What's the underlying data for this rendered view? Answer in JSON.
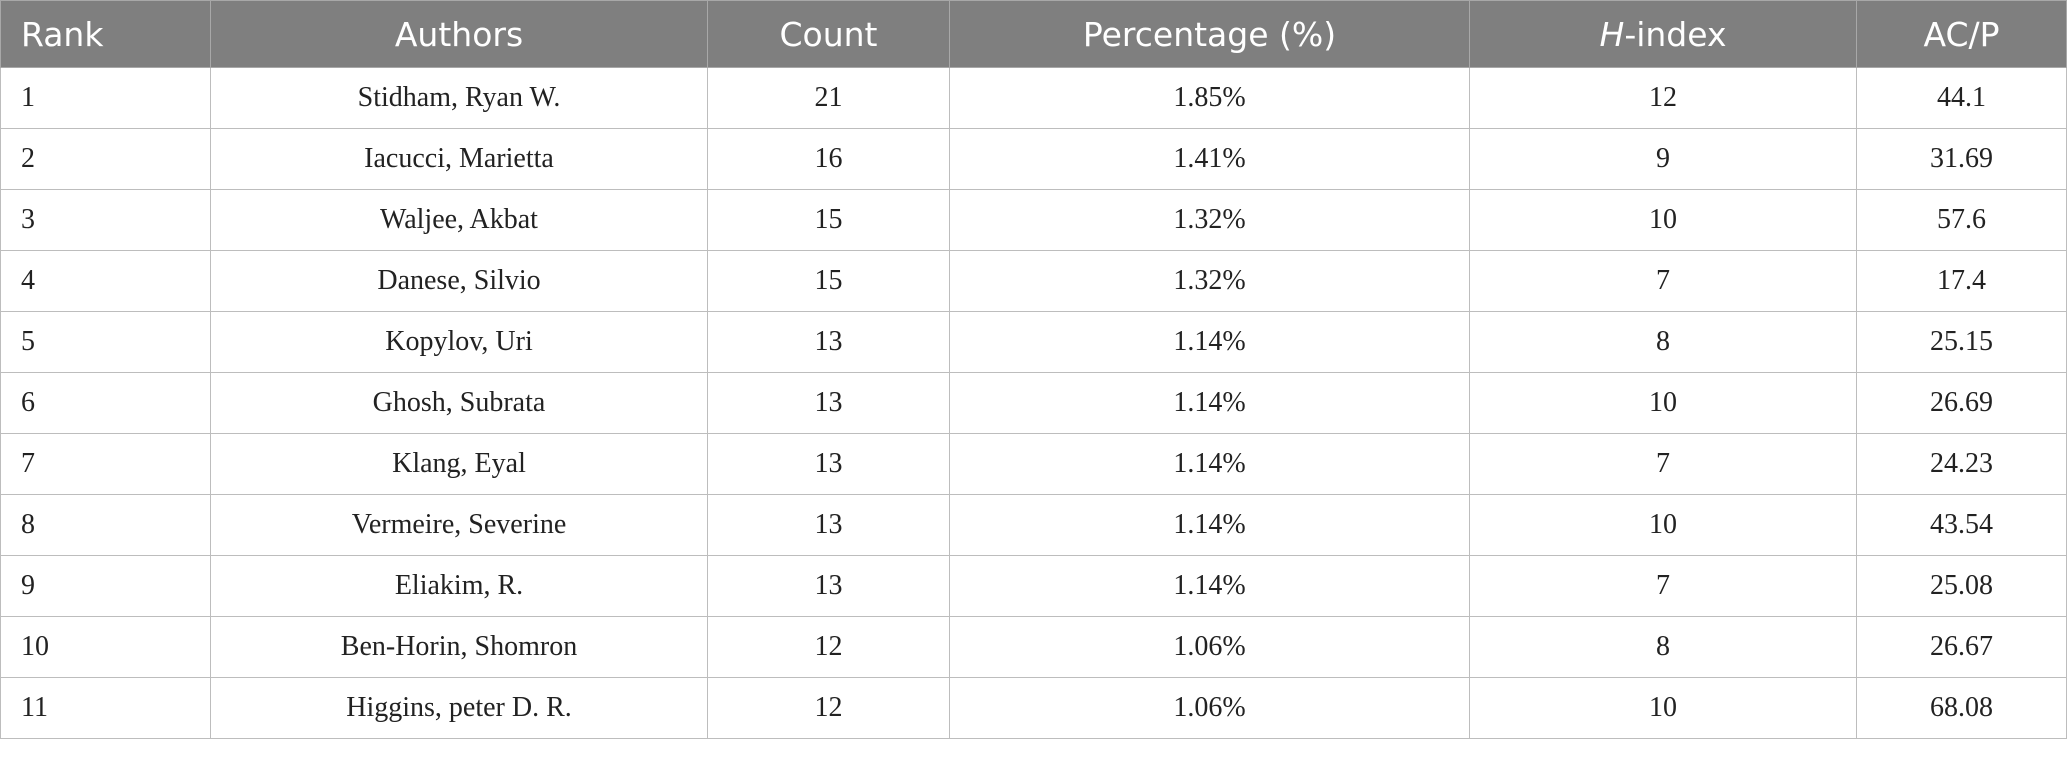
{
  "table": {
    "headers": {
      "rank": "Rank",
      "authors": "Authors",
      "count": "Count",
      "percentage": "Percentage (%)",
      "h_index_prefix": "H",
      "h_index_suffix": "-index",
      "acp": "AC/P"
    },
    "rows": [
      {
        "rank": "1",
        "author": "Stidham, Ryan W.",
        "count": "21",
        "percentage": "1.85%",
        "h_index": "12",
        "acp": "44.1"
      },
      {
        "rank": "2",
        "author": "Iacucci, Marietta",
        "count": "16",
        "percentage": "1.41%",
        "h_index": "9",
        "acp": "31.69"
      },
      {
        "rank": "3",
        "author": "Waljee, Akbat",
        "count": "15",
        "percentage": "1.32%",
        "h_index": "10",
        "acp": "57.6"
      },
      {
        "rank": "4",
        "author": "Danese, Silvio",
        "count": "15",
        "percentage": "1.32%",
        "h_index": "7",
        "acp": "17.4"
      },
      {
        "rank": "5",
        "author": "Kopylov, Uri",
        "count": "13",
        "percentage": "1.14%",
        "h_index": "8",
        "acp": "25.15"
      },
      {
        "rank": "6",
        "author": "Ghosh, Subrata",
        "count": "13",
        "percentage": "1.14%",
        "h_index": "10",
        "acp": "26.69"
      },
      {
        "rank": "7",
        "author": "Klang, Eyal",
        "count": "13",
        "percentage": "1.14%",
        "h_index": "7",
        "acp": "24.23"
      },
      {
        "rank": "8",
        "author": "Vermeire, Severine",
        "count": "13",
        "percentage": "1.14%",
        "h_index": "10",
        "acp": "43.54"
      },
      {
        "rank": "9",
        "author": "Eliakim, R.",
        "count": "13",
        "percentage": "1.14%",
        "h_index": "7",
        "acp": "25.08"
      },
      {
        "rank": "10",
        "author": "Ben-Horin, Shomron",
        "count": "12",
        "percentage": "1.06%",
        "h_index": "8",
        "acp": "26.67"
      },
      {
        "rank": "11",
        "author": "Higgins, peter D. R.",
        "count": "12",
        "percentage": "1.06%",
        "h_index": "10",
        "acp": "68.08"
      }
    ]
  }
}
